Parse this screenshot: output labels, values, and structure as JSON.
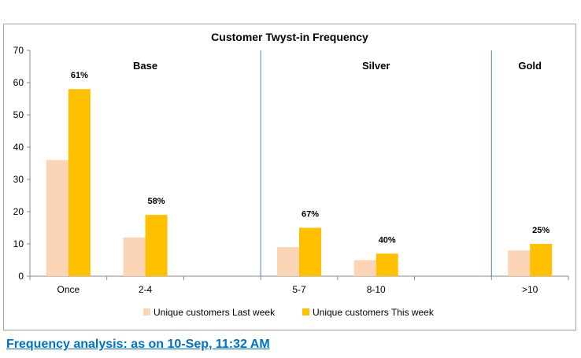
{
  "chart_data": {
    "type": "bar",
    "title": "Customer Twyst-in Frequency",
    "categories": [
      "Once",
      "2-4",
      "",
      "5-7",
      "8-10",
      "",
      ">10"
    ],
    "series": [
      {
        "name": "Unique customers Last week",
        "values": [
          36,
          12,
          null,
          9,
          5,
          null,
          8
        ]
      },
      {
        "name": "Unique customers This week",
        "values": [
          58,
          19,
          null,
          15,
          7,
          null,
          10
        ]
      }
    ],
    "data_labels": [
      "61%",
      "58%",
      "",
      "67%",
      "40%",
      "",
      "25%"
    ],
    "groups": [
      {
        "label": "Base",
        "from": 0,
        "to": 2
      },
      {
        "label": "Silver",
        "from": 3,
        "to": 5
      },
      {
        "label": "Gold",
        "from": 6,
        "to": 6
      }
    ],
    "ylim": [
      0,
      70
    ],
    "yticks": [
      0,
      10,
      20,
      30,
      40,
      50,
      60,
      70
    ],
    "legend_position": "bottom",
    "colors": {
      "last_week": "#fbd5b5",
      "this_week": "#ffc000",
      "divider": "#4f81bd",
      "axis": "#888888",
      "frame": "#a0a0a0"
    }
  },
  "footer": {
    "caption": "Frequency analysis: as on 10-Sep, 11:32 AM"
  }
}
